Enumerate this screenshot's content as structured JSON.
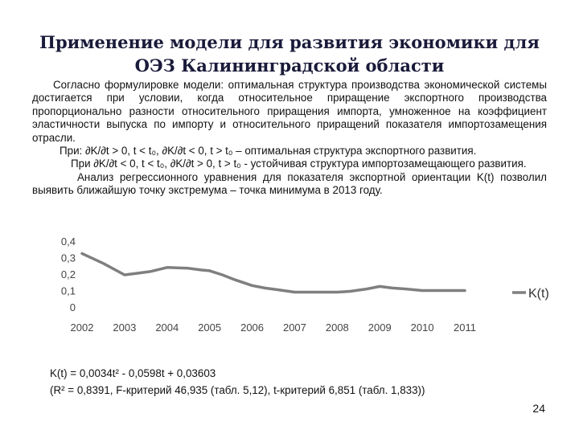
{
  "slide": {
    "title": "Применение модели для развития экономики для ОЭЗ Калининградской области",
    "paragraph1": "Согласно формулировке модели: оптимальная структура производства экономической системы достигается при условии, когда относительное приращение экспортного производства пропорционально разности относительного приращения импорта, умноженное на коэффициент эластичности выпуска по импорту и относительного приращений показателя импортозамещения отрасли.",
    "condition1": "При: ∂K/∂t > 0, t < t₀, ∂K/∂t < 0, t > t₀ – оптимальная структура экспортного развития.",
    "condition2": "При ∂K/∂t < 0, t < t₀, ∂K/∂t > 0, t > t₀ - устойчивая структура импортозамещающего развития.",
    "paragraph2": "Анализ регрессионного уравнения для показателя экспортной ориентации K(t) позволил выявить ближайшую точку экстремума – точка минимума в 2013 году.",
    "formula": "K(t) = 0,0034t² - 0,0598t + 0,03603",
    "stats": "(R² = 0,8391, F-критерий 46,935 (табл. 5,12), t-критерий 6,851 (табл. 1,833))",
    "page_number": "24"
  },
  "chart_data": {
    "type": "line",
    "x": [
      "2002",
      "2003",
      "2004",
      "2005",
      "2006",
      "2007",
      "2008",
      "2009",
      "2010",
      "2011"
    ],
    "series": [
      {
        "name": "K(t)",
        "x": [
          2002,
          2002.5,
          2003,
          2003.3,
          2003.6,
          2004,
          2004.5,
          2004.8,
          2005,
          2005.3,
          2005.6,
          2006,
          2006.3,
          2006.6,
          2007,
          2007.5,
          2008,
          2008.3,
          2008.7,
          2009,
          2009.3,
          2009.6,
          2010,
          2010.5,
          2011
        ],
        "y": [
          0.325,
          0.265,
          0.195,
          0.205,
          0.215,
          0.24,
          0.235,
          0.225,
          0.22,
          0.195,
          0.165,
          0.13,
          0.115,
          0.105,
          0.09,
          0.09,
          0.09,
          0.095,
          0.11,
          0.125,
          0.115,
          0.11,
          0.1,
          0.1,
          0.1
        ],
        "color": "#7f7f7f"
      }
    ],
    "y_ticks": [
      "0",
      "0,1",
      "0,2",
      "0,3",
      "0,4"
    ],
    "ylim": [
      0,
      0.4
    ],
    "xlim": [
      2002,
      2011
    ],
    "grid": false,
    "legend": "right"
  }
}
